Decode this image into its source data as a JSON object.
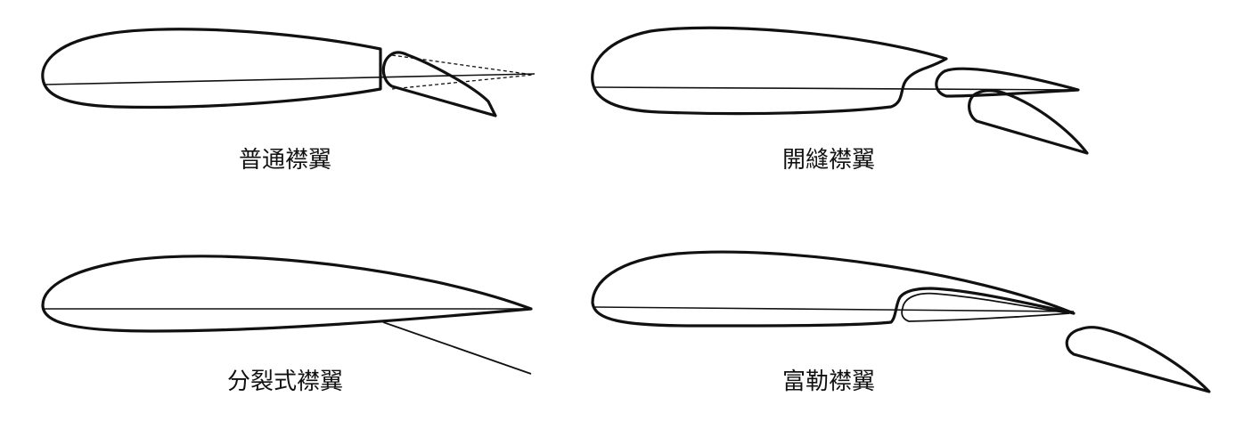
{
  "panels": {
    "plain": {
      "label": "普通襟翼"
    },
    "slotted": {
      "label": "開縫襟翼"
    },
    "split": {
      "label": "分裂式襟翼"
    },
    "fowler": {
      "label": "富勒襟翼"
    }
  }
}
